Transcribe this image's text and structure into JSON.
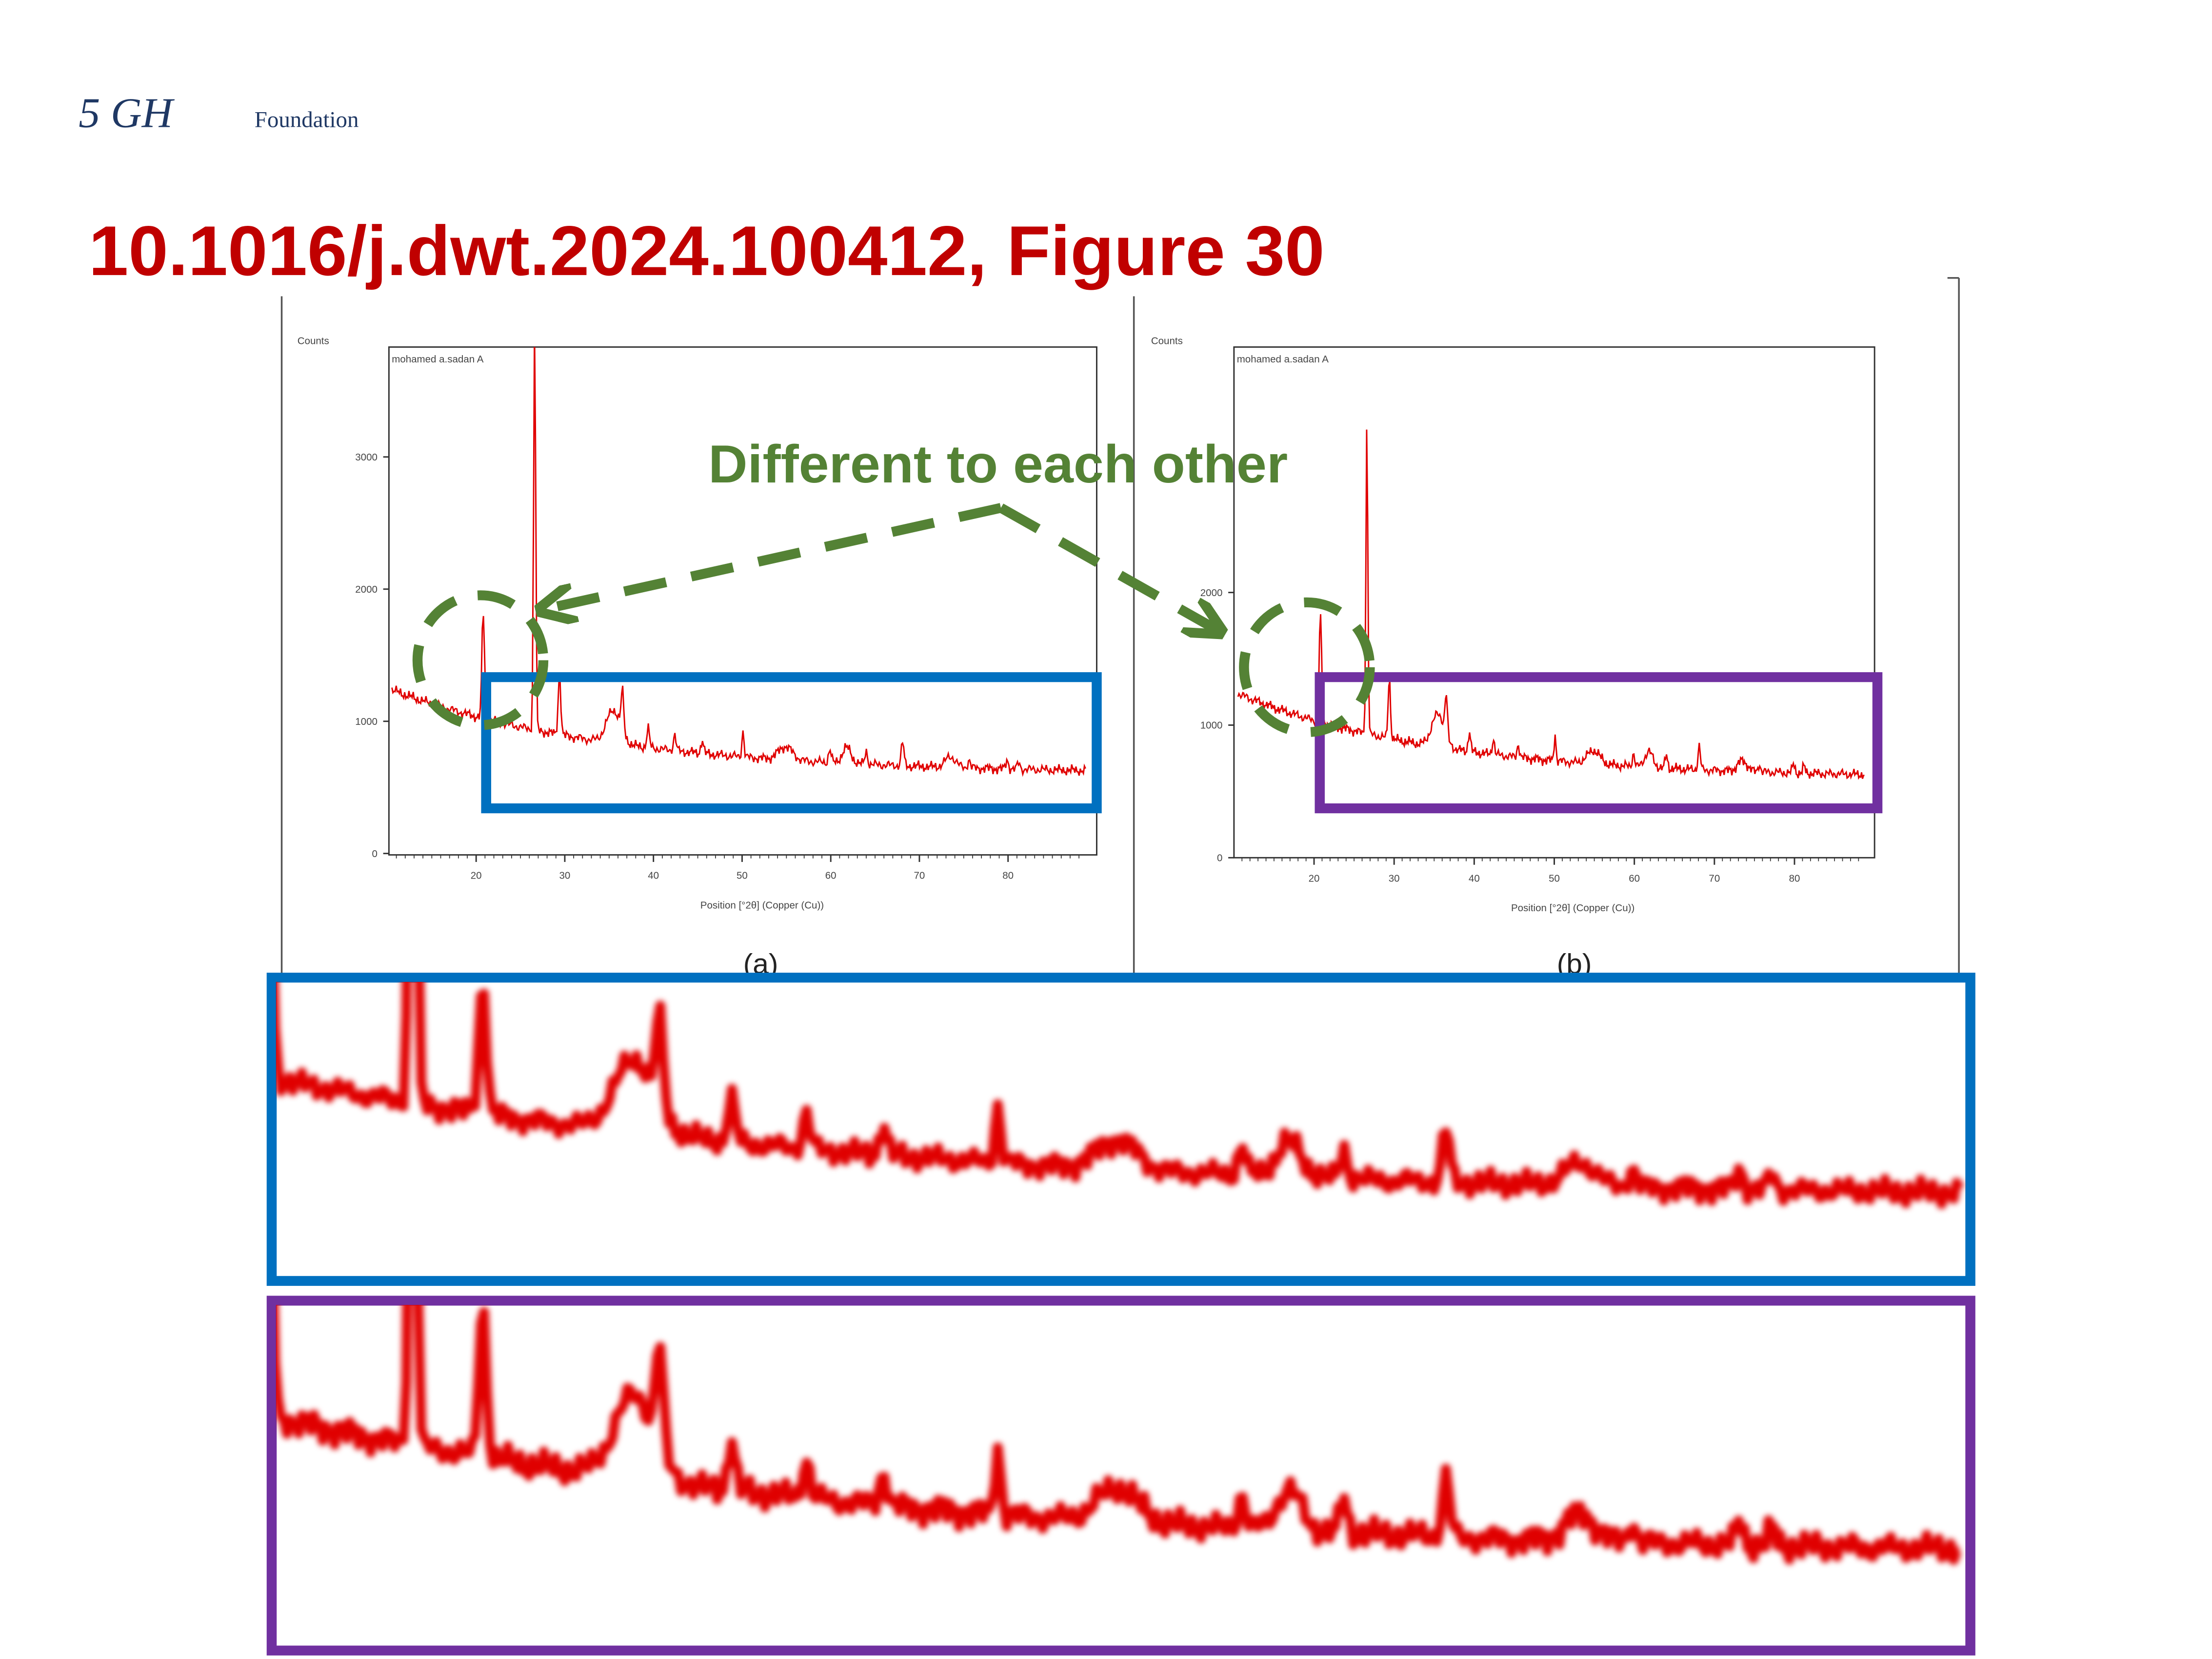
{
  "header": {
    "logo_mark": "5 GH",
    "logo_text": "Foundation"
  },
  "title": "10.1016/j.dwt.2024.100412, Figure 30",
  "annotation": "Different to each other",
  "panels": [
    {
      "y_label": "Counts",
      "sample": "mohamed a.sadan A",
      "yticks": [
        3000,
        2000,
        1000,
        0
      ],
      "xticks": [
        20,
        30,
        40,
        50,
        60,
        70,
        80
      ],
      "x_label": "Position [°2θ] (Copper (Cu))",
      "caption": "(a)"
    },
    {
      "y_label": "Counts",
      "sample": "mohamed a.sadan A",
      "yticks": [
        2000,
        1000,
        0
      ],
      "xticks": [
        20,
        30,
        40,
        50,
        60,
        70,
        80
      ],
      "x_label": "Position [°2θ] (Copper (Cu))",
      "caption": "(b)"
    }
  ]
}
